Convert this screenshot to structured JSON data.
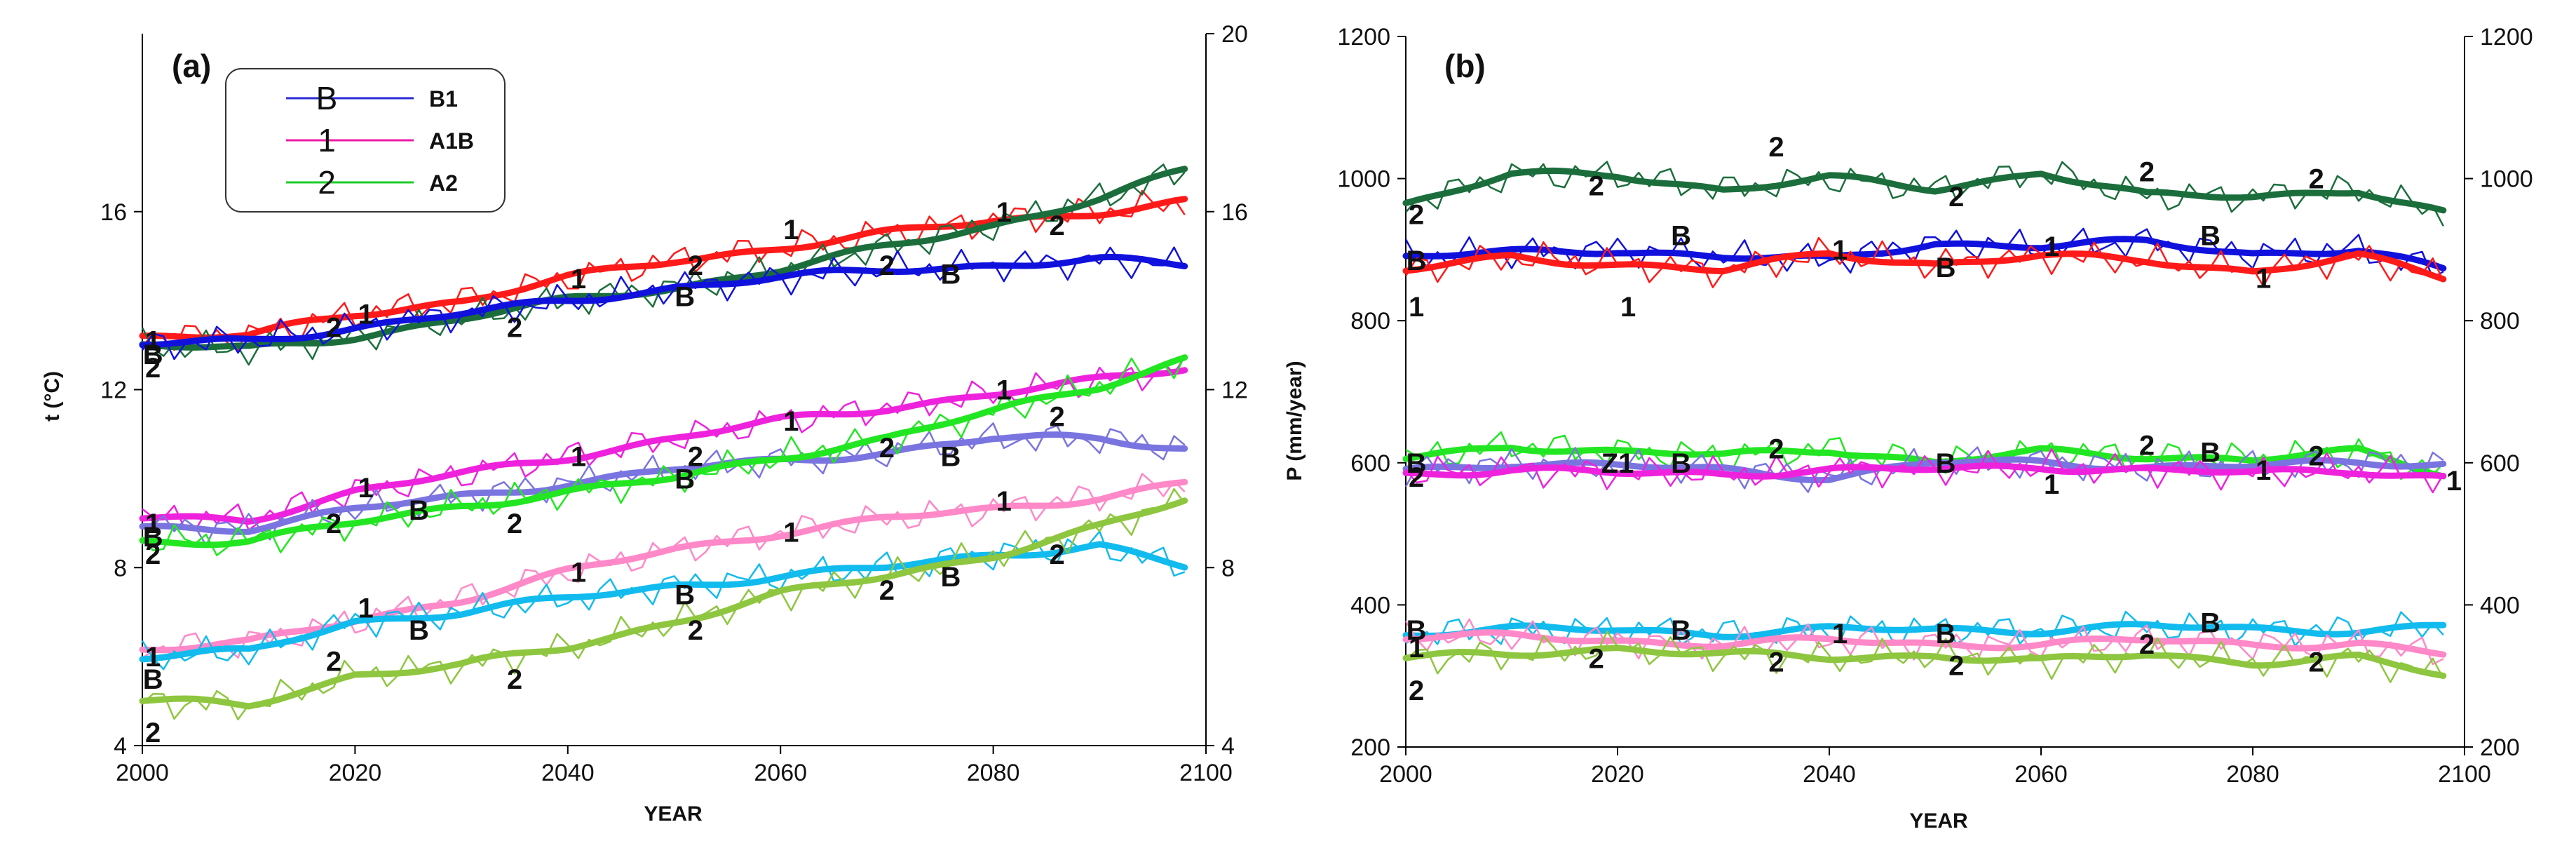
{
  "colors": {
    "B1": "#2b2bd6",
    "A1B": "#ee1aa6",
    "A2": "#1ccc2a",
    "red": "#ff1a1a",
    "dkgreen": "#1b6e3c",
    "blue": "#1111dd",
    "magenta": "#ee22dd",
    "lavender": "#7a74e0",
    "lime": "#22e622",
    "pink": "#ff88c8",
    "cyan": "#11bbee",
    "olive": "#8ec63f"
  },
  "chart_data": [
    {
      "id": "a",
      "type": "line",
      "panel_label": "(a)",
      "xlabel": "YEAR",
      "ylabel": "t (°C)",
      "xlim": [
        2000,
        2100
      ],
      "ylim": [
        4,
        20
      ],
      "xticks": [
        "2000",
        "2020",
        "2040",
        "2060",
        "2080",
        "2100"
      ],
      "yticks_left": [
        "4",
        "8",
        "12",
        "16"
      ],
      "yticks_right": [
        "4",
        "8",
        "12",
        "16",
        "20"
      ],
      "legend": [
        {
          "symbol": "B",
          "label": "B1",
          "color": "#2b2bd6"
        },
        {
          "symbol": "1",
          "label": "A1B",
          "color": "#ee1aa6"
        },
        {
          "symbol": "2",
          "label": "A2",
          "color": "#1ccc2a"
        }
      ],
      "series": [
        {
          "name": "top-A1B",
          "color": "#ff1a1a",
          "x": [
            2000,
            2010,
            2020,
            2030,
            2040,
            2050,
            2060,
            2070,
            2080,
            2090,
            2098
          ],
          "values": [
            13.2,
            13.2,
            13.7,
            14.0,
            14.5,
            14.9,
            15.2,
            15.5,
            15.8,
            16.0,
            16.2
          ]
        },
        {
          "name": "top-A2",
          "color": "#1b6e3c",
          "x": [
            2000,
            2010,
            2020,
            2030,
            2040,
            2050,
            2060,
            2070,
            2080,
            2090,
            2098
          ],
          "values": [
            13.0,
            12.9,
            13.2,
            13.6,
            14.0,
            14.3,
            14.7,
            15.2,
            15.7,
            16.3,
            16.9
          ]
        },
        {
          "name": "top-B1",
          "color": "#1111dd",
          "x": [
            2000,
            2010,
            2020,
            2030,
            2040,
            2050,
            2060,
            2070,
            2080,
            2090,
            2098
          ],
          "values": [
            13.0,
            13.1,
            13.4,
            13.7,
            14.0,
            14.3,
            14.5,
            14.7,
            14.8,
            14.9,
            14.8
          ]
        },
        {
          "name": "mid-A1B",
          "color": "#ee22dd",
          "x": [
            2000,
            2010,
            2020,
            2030,
            2040,
            2050,
            2060,
            2070,
            2080,
            2090,
            2098
          ],
          "values": [
            9.1,
            9.1,
            9.7,
            10.1,
            10.5,
            10.9,
            11.3,
            11.6,
            11.9,
            12.2,
            12.5
          ]
        },
        {
          "name": "mid-B1",
          "color": "#7a74e0",
          "x": [
            2000,
            2010,
            2020,
            2030,
            2040,
            2050,
            2060,
            2070,
            2080,
            2090,
            2098
          ],
          "values": [
            8.9,
            8.9,
            9.3,
            9.6,
            9.9,
            10.2,
            10.4,
            10.6,
            10.9,
            10.9,
            10.7
          ]
        },
        {
          "name": "mid-A2",
          "color": "#22e622",
          "x": [
            2000,
            2010,
            2020,
            2030,
            2040,
            2050,
            2060,
            2070,
            2080,
            2090,
            2098
          ],
          "values": [
            8.6,
            8.6,
            9.0,
            9.4,
            9.7,
            10.0,
            10.5,
            10.9,
            11.5,
            12.1,
            12.7
          ]
        },
        {
          "name": "low-A1B",
          "color": "#ff88c8",
          "x": [
            2000,
            2010,
            2020,
            2030,
            2040,
            2050,
            2060,
            2070,
            2080,
            2090,
            2098
          ],
          "values": [
            6.2,
            6.3,
            6.8,
            7.3,
            7.9,
            8.4,
            8.8,
            9.1,
            9.3,
            9.6,
            9.9
          ]
        },
        {
          "name": "low-B1",
          "color": "#11bbee",
          "x": [
            2000,
            2010,
            2020,
            2030,
            2040,
            2050,
            2060,
            2070,
            2080,
            2090,
            2098
          ],
          "values": [
            6.0,
            6.1,
            6.8,
            7.0,
            7.3,
            7.6,
            7.8,
            8.0,
            8.3,
            8.5,
            8.0
          ]
        },
        {
          "name": "low-A2",
          "color": "#8ec63f",
          "x": [
            2000,
            2010,
            2020,
            2030,
            2040,
            2050,
            2060,
            2070,
            2080,
            2090,
            2098
          ],
          "values": [
            5.0,
            4.9,
            5.6,
            5.8,
            6.2,
            6.8,
            7.4,
            7.8,
            8.3,
            8.9,
            9.5
          ]
        }
      ],
      "annotations": [
        {
          "text": "1",
          "x": 2001,
          "y": 13.1
        },
        {
          "text": "B",
          "x": 2001,
          "y": 12.8
        },
        {
          "text": "2",
          "x": 2001,
          "y": 12.5
        },
        {
          "text": "2",
          "x": 2018,
          "y": 13.4
        },
        {
          "text": "1",
          "x": 2021,
          "y": 13.7
        },
        {
          "text": "2",
          "x": 2035,
          "y": 13.4
        },
        {
          "text": "1",
          "x": 2041,
          "y": 14.5
        },
        {
          "text": "B",
          "x": 2051,
          "y": 14.1
        },
        {
          "text": "2",
          "x": 2052,
          "y": 14.8
        },
        {
          "text": "1",
          "x": 2061,
          "y": 15.6
        },
        {
          "text": "2",
          "x": 2070,
          "y": 14.8
        },
        {
          "text": "B",
          "x": 2076,
          "y": 14.6
        },
        {
          "text": "1",
          "x": 2081,
          "y": 16.0
        },
        {
          "text": "2",
          "x": 2086,
          "y": 15.7
        },
        {
          "text": "1",
          "x": 2001,
          "y": 9.0
        },
        {
          "text": "B",
          "x": 2001,
          "y": 8.7
        },
        {
          "text": "2",
          "x": 2001,
          "y": 8.3
        },
        {
          "text": "2",
          "x": 2018,
          "y": 9.0
        },
        {
          "text": "1",
          "x": 2021,
          "y": 9.8
        },
        {
          "text": "B",
          "x": 2026,
          "y": 9.3
        },
        {
          "text": "2",
          "x": 2035,
          "y": 9.0
        },
        {
          "text": "1",
          "x": 2041,
          "y": 10.5
        },
        {
          "text": "B",
          "x": 2051,
          "y": 10.0
        },
        {
          "text": "2",
          "x": 2052,
          "y": 10.5
        },
        {
          "text": "1",
          "x": 2061,
          "y": 11.3
        },
        {
          "text": "2",
          "x": 2070,
          "y": 10.7
        },
        {
          "text": "B",
          "x": 2076,
          "y": 10.5
        },
        {
          "text": "1",
          "x": 2081,
          "y": 12.0
        },
        {
          "text": "2",
          "x": 2086,
          "y": 11.4
        },
        {
          "text": "1",
          "x": 2001,
          "y": 6.0
        },
        {
          "text": "B",
          "x": 2001,
          "y": 5.5
        },
        {
          "text": "2",
          "x": 2001,
          "y": 4.3
        },
        {
          "text": "2",
          "x": 2018,
          "y": 5.9
        },
        {
          "text": "1",
          "x": 2021,
          "y": 7.1
        },
        {
          "text": "B",
          "x": 2026,
          "y": 6.6
        },
        {
          "text": "2",
          "x": 2035,
          "y": 5.5
        },
        {
          "text": "1",
          "x": 2041,
          "y": 7.9
        },
        {
          "text": "B",
          "x": 2051,
          "y": 7.4
        },
        {
          "text": "2",
          "x": 2052,
          "y": 6.6
        },
        {
          "text": "1",
          "x": 2061,
          "y": 8.8
        },
        {
          "text": "2",
          "x": 2070,
          "y": 7.5
        },
        {
          "text": "B",
          "x": 2076,
          "y": 7.8
        },
        {
          "text": "1",
          "x": 2081,
          "y": 9.5
        },
        {
          "text": "2",
          "x": 2086,
          "y": 8.3
        }
      ]
    },
    {
      "id": "b",
      "type": "line",
      "panel_label": "(b)",
      "xlabel": "YEAR",
      "ylabel": "P (mm/year)",
      "xlim": [
        2000,
        2100
      ],
      "ylim": [
        200,
        1200
      ],
      "xticks": [
        "2000",
        "2020",
        "2040",
        "2060",
        "2080",
        "2100"
      ],
      "yticks_left": [
        "200",
        "400",
        "600",
        "800",
        "1000",
        "1200"
      ],
      "yticks_right": [
        "200",
        "400",
        "600",
        "800",
        "1000",
        "1200"
      ],
      "series": [
        {
          "name": "top-A2",
          "color": "#1b6e3c",
          "x": [
            2000,
            2010,
            2020,
            2030,
            2040,
            2050,
            2060,
            2070,
            2080,
            2090,
            2098
          ],
          "values": [
            965,
            1005,
            1005,
            985,
            1000,
            985,
            1010,
            975,
            975,
            985,
            950
          ]
        },
        {
          "name": "top-B1",
          "color": "#1111dd",
          "x": [
            2000,
            2010,
            2020,
            2030,
            2040,
            2050,
            2060,
            2070,
            2080,
            2090,
            2098
          ],
          "values": [
            890,
            895,
            900,
            890,
            885,
            910,
            905,
            910,
            895,
            900,
            870
          ]
        },
        {
          "name": "top-A1B",
          "color": "#ff1a1a",
          "x": [
            2000,
            2010,
            2020,
            2030,
            2040,
            2050,
            2060,
            2070,
            2080,
            2090,
            2098
          ],
          "values": [
            870,
            890,
            880,
            870,
            895,
            880,
            890,
            885,
            870,
            890,
            860
          ]
        },
        {
          "name": "mid-A2",
          "color": "#22e622",
          "x": [
            2000,
            2010,
            2020,
            2030,
            2040,
            2050,
            2060,
            2070,
            2080,
            2090,
            2098
          ],
          "values": [
            605,
            625,
            615,
            610,
            620,
            600,
            615,
            610,
            605,
            615,
            585
          ]
        },
        {
          "name": "mid-B1",
          "color": "#7a74e0",
          "x": [
            2000,
            2010,
            2020,
            2030,
            2040,
            2050,
            2060,
            2070,
            2080,
            2090,
            2098
          ],
          "values": [
            590,
            600,
            595,
            590,
            580,
            600,
            600,
            595,
            595,
            600,
            600
          ]
        },
        {
          "name": "mid-A1B",
          "color": "#ee22dd",
          "x": [
            2000,
            2010,
            2020,
            2030,
            2040,
            2050,
            2060,
            2070,
            2080,
            2090,
            2098
          ],
          "values": [
            585,
            590,
            585,
            585,
            590,
            590,
            595,
            590,
            585,
            590,
            580
          ]
        },
        {
          "name": "low-B1",
          "color": "#11bbee",
          "x": [
            2000,
            2010,
            2020,
            2030,
            2040,
            2050,
            2060,
            2070,
            2080,
            2090,
            2098
          ],
          "values": [
            360,
            365,
            365,
            360,
            365,
            365,
            365,
            370,
            365,
            365,
            370
          ]
        },
        {
          "name": "low-A1B",
          "color": "#ff88c8",
          "x": [
            2000,
            2010,
            2020,
            2030,
            2040,
            2050,
            2060,
            2070,
            2080,
            2090,
            2098
          ],
          "values": [
            355,
            355,
            350,
            345,
            350,
            345,
            345,
            350,
            345,
            345,
            330
          ]
        },
        {
          "name": "low-A2",
          "color": "#8ec63f",
          "x": [
            2000,
            2010,
            2020,
            2030,
            2040,
            2050,
            2060,
            2070,
            2080,
            2090,
            2098
          ],
          "values": [
            325,
            330,
            340,
            330,
            325,
            330,
            320,
            330,
            320,
            325,
            300
          ]
        }
      ],
      "annotations": [
        {
          "text": "2",
          "x": 2001,
          "y": 950
        },
        {
          "text": "B",
          "x": 2001,
          "y": 885
        },
        {
          "text": "1",
          "x": 2001,
          "y": 820
        },
        {
          "text": "2",
          "x": 2018,
          "y": 990
        },
        {
          "text": "1",
          "x": 2021,
          "y": 820
        },
        {
          "text": "B",
          "x": 2026,
          "y": 920
        },
        {
          "text": "2",
          "x": 2035,
          "y": 1045
        },
        {
          "text": "1",
          "x": 2041,
          "y": 900
        },
        {
          "text": "B",
          "x": 2051,
          "y": 875
        },
        {
          "text": "2",
          "x": 2052,
          "y": 975
        },
        {
          "text": "1",
          "x": 2061,
          "y": 905
        },
        {
          "text": "2",
          "x": 2070,
          "y": 1010
        },
        {
          "text": "B",
          "x": 2076,
          "y": 920
        },
        {
          "text": "1",
          "x": 2081,
          "y": 860
        },
        {
          "text": "2",
          "x": 2086,
          "y": 1000
        },
        {
          "text": "B",
          "x": 2001,
          "y": 600
        },
        {
          "text": "2",
          "x": 2001,
          "y": 580
        },
        {
          "text": "Z1",
          "x": 2020,
          "y": 600
        },
        {
          "text": "B",
          "x": 2026,
          "y": 600
        },
        {
          "text": "2",
          "x": 2035,
          "y": 620
        },
        {
          "text": "B",
          "x": 2051,
          "y": 600
        },
        {
          "text": "1",
          "x": 2061,
          "y": 570
        },
        {
          "text": "2",
          "x": 2070,
          "y": 625
        },
        {
          "text": "B",
          "x": 2076,
          "y": 615
        },
        {
          "text": "1",
          "x": 2081,
          "y": 590
        },
        {
          "text": "2",
          "x": 2086,
          "y": 610
        },
        {
          "text": "1",
          "x": 2099,
          "y": 575
        },
        {
          "text": "B",
          "x": 2001,
          "y": 365
        },
        {
          "text": "1",
          "x": 2001,
          "y": 340
        },
        {
          "text": "2",
          "x": 2001,
          "y": 280
        },
        {
          "text": "2",
          "x": 2018,
          "y": 325
        },
        {
          "text": "B",
          "x": 2026,
          "y": 365
        },
        {
          "text": "1",
          "x": 2041,
          "y": 360
        },
        {
          "text": "2",
          "x": 2035,
          "y": 320
        },
        {
          "text": "B",
          "x": 2051,
          "y": 360
        },
        {
          "text": "2",
          "x": 2052,
          "y": 315
        },
        {
          "text": "2",
          "x": 2070,
          "y": 345
        },
        {
          "text": "B",
          "x": 2076,
          "y": 375
        },
        {
          "text": "2",
          "x": 2086,
          "y": 320
        }
      ]
    }
  ]
}
